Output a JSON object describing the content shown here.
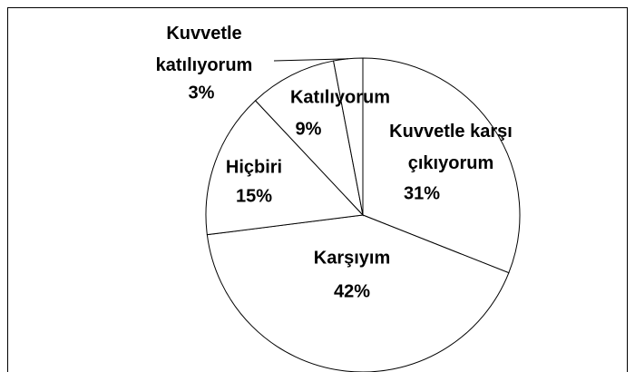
{
  "chart_data": {
    "type": "pie",
    "categories": [
      "Kuvvetle karşı çıkıyorum",
      "Karşıyım",
      "Hiçbiri",
      "Katılıyorum",
      "Kuvvetle katılıyorum"
    ],
    "values": [
      31,
      42,
      15,
      9,
      3
    ],
    "value_labels": [
      "31%",
      "42%",
      "15%",
      "9%",
      "3%"
    ],
    "color": "#ffffff"
  }
}
